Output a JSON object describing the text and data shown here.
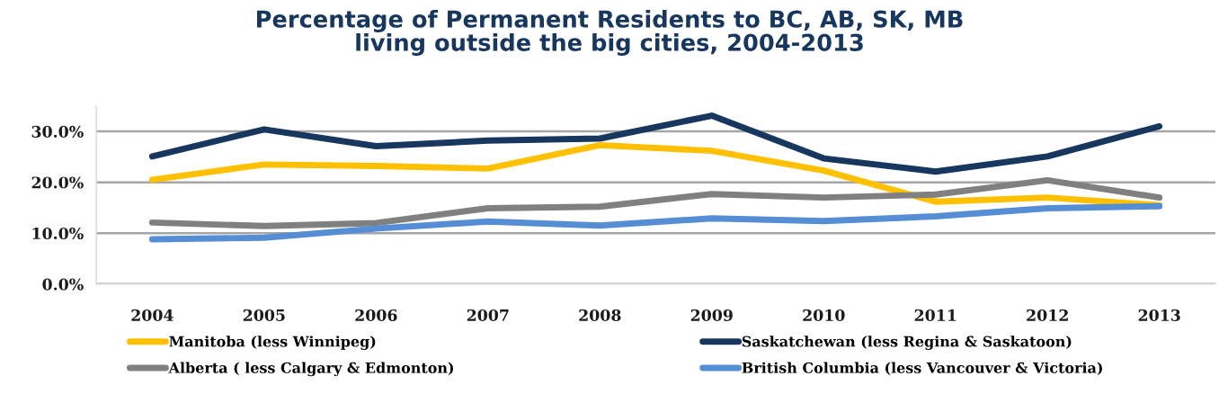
{
  "chart_data": {
    "type": "line",
    "title": "Percentage of Permanent Residents to BC, AB, SK, MB\nliving outside the big cities, 2004-2013",
    "categories": [
      "2004",
      "2005",
      "2006",
      "2007",
      "2008",
      "2009",
      "2010",
      "2011",
      "2012",
      "2013"
    ],
    "series": [
      {
        "name": "Manitoba (less Winnipeg)",
        "color": "#ffc000",
        "values": [
          20.5,
          23.5,
          23.2,
          22.7,
          27.3,
          26.2,
          22.3,
          16.2,
          17.0,
          15.5
        ]
      },
      {
        "name": "Saskatchewan (less Regina & Saskatoon)",
        "color": "#17375e",
        "values": [
          25.1,
          30.4,
          27.1,
          28.2,
          28.6,
          33.1,
          24.7,
          22.1,
          25.1,
          31.0
        ]
      },
      {
        "name": "Alberta ( less Calgary & Edmonton)",
        "color": "#808080",
        "values": [
          12.1,
          11.4,
          12.0,
          14.9,
          15.2,
          17.7,
          17.0,
          17.6,
          20.4,
          17.0
        ]
      },
      {
        "name": "British Columbia (less Vancouver & Victoria)",
        "color": "#558ed5",
        "values": [
          8.8,
          9.1,
          10.9,
          12.3,
          11.5,
          12.9,
          12.4,
          13.3,
          14.9,
          15.3
        ]
      }
    ],
    "ylim": [
      0,
      35
    ],
    "yticks": [
      {
        "value": 0,
        "label": "0.0%"
      },
      {
        "value": 10,
        "label": "10.0%"
      },
      {
        "value": 20,
        "label": "20.0%"
      },
      {
        "value": 30,
        "label": "30.0%"
      }
    ],
    "grid": "y",
    "legend": "bottom",
    "marker": "none",
    "line_style": "solid"
  }
}
